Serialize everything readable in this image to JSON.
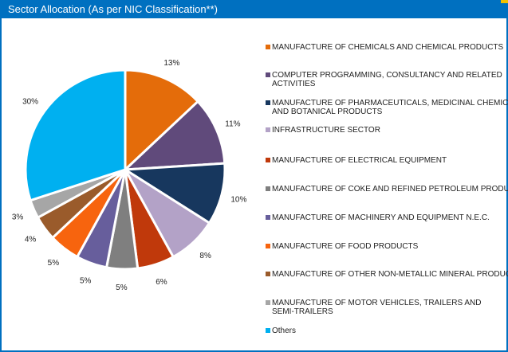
{
  "chart_data": {
    "type": "pie",
    "title": "Sector Allocation (As per NIC Classification**)",
    "categories": [
      "MANUFACTURE OF CHEMICALS AND CHEMICAL PRODUCTS",
      "COMPUTER PROGRAMMING, CONSULTANCY AND RELATED ACTIVITIES",
      "MANUFACTURE OF PHARMACEUTICALS, MEDICINAL CHEMICAL AND BOTANICAL PRODUCTS",
      "INFRASTRUCTURE SECTOR",
      "MANUFACTURE OF ELECTRICAL EQUIPMENT",
      "MANUFACTURE OF COKE AND REFINED PETROLEUM PRODUCTS",
      "MANUFACTURE OF MACHINERY AND EQUIPMENT N.E.C.",
      "MANUFACTURE OF FOOD PRODUCTS",
      "MANUFACTURE OF OTHER NON-METALLIC MINERAL PRODUCTS",
      "MANUFACTURE OF MOTOR VEHICLES, TRAILERS AND SEMI-TRAILERS",
      "Others"
    ],
    "values": [
      13,
      11,
      10,
      8,
      6,
      5,
      5,
      5,
      4,
      3,
      30
    ],
    "value_labels": [
      "13%",
      "11%",
      "10%",
      "8%",
      "6%",
      "5%",
      "5%",
      "5%",
      "4%",
      "3%",
      "30%"
    ],
    "colors": [
      "#e46c0a",
      "#604a7b",
      "#17375e",
      "#b3a2c7",
      "#c0390b",
      "#7f7f7f",
      "#675e9c",
      "#f7640e",
      "#9a5b2b",
      "#a6a6a6",
      "#00b0f0"
    ],
    "legend": "right"
  }
}
